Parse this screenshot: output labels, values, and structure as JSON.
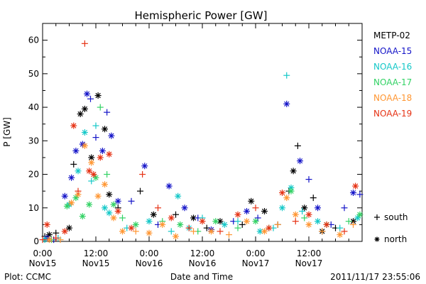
{
  "chart_data": {
    "type": "scatter",
    "title": "Hemispheric Power [GW]",
    "ylabel": "P [GW]",
    "xlabel": "Date and Time",
    "ylim": [
      0,
      65
    ],
    "y_ticks": [
      0,
      10,
      20,
      30,
      40,
      50,
      60
    ],
    "xlim_hours": [
      0,
      72
    ],
    "x_ticks": [
      {
        "t": 0,
        "time": "0:00",
        "date": "Nov15"
      },
      {
        "t": 12,
        "time": "12:00",
        "date": "Nov15"
      },
      {
        "t": 24,
        "time": "0:00",
        "date": "Nov16"
      },
      {
        "t": 36,
        "time": "12:00",
        "date": "Nov16"
      },
      {
        "t": 48,
        "time": "0:00",
        "date": "Nov17"
      },
      {
        "t": 60,
        "time": "12:00",
        "date": "Nov17"
      }
    ],
    "legend_position": "right",
    "marker_legend": [
      {
        "symbol": "+",
        "label": "south"
      },
      {
        "symbol": "*",
        "label": "north"
      }
    ],
    "footer_left": "Plot: CCMC",
    "footer_right": "2011/11/17 23:55:06",
    "series": [
      {
        "name": "METP-02",
        "color": "#000000",
        "points": [
          {
            "t": 0.5,
            "y": 1.5,
            "m": "+"
          },
          {
            "t": 1.5,
            "y": 2,
            "m": "*"
          },
          {
            "t": 3,
            "y": 2.5,
            "m": "+"
          },
          {
            "t": 6,
            "y": 4,
            "m": "*"
          },
          {
            "t": 7,
            "y": 23,
            "m": "+"
          },
          {
            "t": 8.5,
            "y": 38,
            "m": "*"
          },
          {
            "t": 9.5,
            "y": 39.5,
            "m": "*"
          },
          {
            "t": 11,
            "y": 25,
            "m": "*"
          },
          {
            "t": 12.5,
            "y": 43.5,
            "m": "*"
          },
          {
            "t": 14,
            "y": 33.5,
            "m": "*"
          },
          {
            "t": 15,
            "y": 14,
            "m": "*"
          },
          {
            "t": 17,
            "y": 10,
            "m": "+"
          },
          {
            "t": 22,
            "y": 15,
            "m": "+"
          },
          {
            "t": 25,
            "y": 8,
            "m": "*"
          },
          {
            "t": 30,
            "y": 8,
            "m": "+"
          },
          {
            "t": 34,
            "y": 7,
            "m": "*"
          },
          {
            "t": 37,
            "y": 4,
            "m": "+"
          },
          {
            "t": 40,
            "y": 6,
            "m": "*"
          },
          {
            "t": 45,
            "y": 5,
            "m": "+"
          },
          {
            "t": 47,
            "y": 12,
            "m": "*"
          },
          {
            "t": 50,
            "y": 9,
            "m": "*"
          },
          {
            "t": 53,
            "y": 5,
            "m": "+"
          },
          {
            "t": 55.5,
            "y": 15,
            "m": "+"
          },
          {
            "t": 56.5,
            "y": 21,
            "m": "*"
          },
          {
            "t": 57.5,
            "y": 28.5,
            "m": "+"
          },
          {
            "t": 59,
            "y": 10,
            "m": "*"
          },
          {
            "t": 61,
            "y": 13,
            "m": "+"
          },
          {
            "t": 63,
            "y": 3,
            "m": "*"
          },
          {
            "t": 66,
            "y": 4,
            "m": "+"
          },
          {
            "t": 70,
            "y": 6,
            "m": "*"
          }
        ]
      },
      {
        "name": "NOAA-15",
        "color": "#1414c8",
        "points": [
          {
            "t": 1,
            "y": 1,
            "m": "*"
          },
          {
            "t": 2.5,
            "y": 0.5,
            "m": "+"
          },
          {
            "t": 5,
            "y": 13.5,
            "m": "*"
          },
          {
            "t": 6.5,
            "y": 19,
            "m": "*"
          },
          {
            "t": 7.5,
            "y": 27,
            "m": "*"
          },
          {
            "t": 9,
            "y": 29,
            "m": "*"
          },
          {
            "t": 10,
            "y": 44,
            "m": "*"
          },
          {
            "t": 10.8,
            "y": 42.5,
            "m": "+"
          },
          {
            "t": 12,
            "y": 31,
            "m": "+"
          },
          {
            "t": 13.5,
            "y": 27,
            "m": "*"
          },
          {
            "t": 14.5,
            "y": 38.5,
            "m": "+"
          },
          {
            "t": 15.5,
            "y": 31.5,
            "m": "*"
          },
          {
            "t": 17,
            "y": 12,
            "m": "*"
          },
          {
            "t": 20,
            "y": 12,
            "m": "+"
          },
          {
            "t": 23,
            "y": 22.5,
            "m": "*"
          },
          {
            "t": 26,
            "y": 5,
            "m": "+"
          },
          {
            "t": 28.5,
            "y": 16.5,
            "m": "*"
          },
          {
            "t": 32,
            "y": 10,
            "m": "*"
          },
          {
            "t": 35,
            "y": 7,
            "m": "+"
          },
          {
            "t": 38,
            "y": 3.5,
            "m": "*"
          },
          {
            "t": 43,
            "y": 6,
            "m": "+"
          },
          {
            "t": 46,
            "y": 9,
            "m": "*"
          },
          {
            "t": 48.5,
            "y": 7,
            "m": "+"
          },
          {
            "t": 55,
            "y": 41,
            "m": "*"
          },
          {
            "t": 58,
            "y": 24,
            "m": "*"
          },
          {
            "t": 60,
            "y": 18.5,
            "m": "+"
          },
          {
            "t": 62,
            "y": 10,
            "m": "*"
          },
          {
            "t": 65,
            "y": 5,
            "m": "+"
          },
          {
            "t": 68,
            "y": 10,
            "m": "+"
          },
          {
            "t": 70,
            "y": 14.5,
            "m": "*"
          },
          {
            "t": 71.5,
            "y": 14,
            "m": "+"
          }
        ]
      },
      {
        "name": "NOAA-16",
        "color": "#14c8c8",
        "points": [
          {
            "t": 0.5,
            "y": 0.5,
            "m": "*"
          },
          {
            "t": 3.5,
            "y": 1,
            "m": "+"
          },
          {
            "t": 6,
            "y": 11,
            "m": "*"
          },
          {
            "t": 8,
            "y": 21,
            "m": "*"
          },
          {
            "t": 9.5,
            "y": 32.5,
            "m": "*"
          },
          {
            "t": 11,
            "y": 18,
            "m": "+"
          },
          {
            "t": 12,
            "y": 34.5,
            "m": "+"
          },
          {
            "t": 14,
            "y": 10,
            "m": "*"
          },
          {
            "t": 15,
            "y": 8.5,
            "m": "*"
          },
          {
            "t": 19,
            "y": 4,
            "m": "+"
          },
          {
            "t": 24,
            "y": 6,
            "m": "*"
          },
          {
            "t": 29,
            "y": 3,
            "m": "+"
          },
          {
            "t": 30.5,
            "y": 13.5,
            "m": "*"
          },
          {
            "t": 33,
            "y": 4,
            "m": "*"
          },
          {
            "t": 36,
            "y": 7,
            "m": "+"
          },
          {
            "t": 41,
            "y": 5,
            "m": "*"
          },
          {
            "t": 44,
            "y": 6,
            "m": "+"
          },
          {
            "t": 49,
            "y": 3,
            "m": "*"
          },
          {
            "t": 52,
            "y": 4,
            "m": "+"
          },
          {
            "t": 54,
            "y": 10,
            "m": "*"
          },
          {
            "t": 55,
            "y": 49.5,
            "m": "+"
          },
          {
            "t": 56,
            "y": 16,
            "m": "*"
          },
          {
            "t": 58.5,
            "y": 9,
            "m": "+"
          },
          {
            "t": 62,
            "y": 6,
            "m": "*"
          },
          {
            "t": 67,
            "y": 4,
            "m": "+"
          },
          {
            "t": 71,
            "y": 7,
            "m": "*"
          }
        ]
      },
      {
        "name": "NOAA-17",
        "color": "#32d264",
        "points": [
          {
            "t": 2,
            "y": 0.5,
            "m": "+"
          },
          {
            "t": 5.5,
            "y": 10.5,
            "m": "*"
          },
          {
            "t": 7.5,
            "y": 13,
            "m": "*"
          },
          {
            "t": 9,
            "y": 7.5,
            "m": "*"
          },
          {
            "t": 10.5,
            "y": 11,
            "m": "*"
          },
          {
            "t": 12,
            "y": 19,
            "m": "*"
          },
          {
            "t": 13,
            "y": 40,
            "m": "+"
          },
          {
            "t": 14.5,
            "y": 20,
            "m": "+"
          },
          {
            "t": 16,
            "y": 11,
            "m": "*"
          },
          {
            "t": 18,
            "y": 7,
            "m": "+"
          },
          {
            "t": 21,
            "y": 5,
            "m": "*"
          },
          {
            "t": 27,
            "y": 6,
            "m": "+"
          },
          {
            "t": 31,
            "y": 5,
            "m": "*"
          },
          {
            "t": 35,
            "y": 3,
            "m": "+"
          },
          {
            "t": 39,
            "y": 6,
            "m": "*"
          },
          {
            "t": 44,
            "y": 4,
            "m": "+"
          },
          {
            "t": 48,
            "y": 6,
            "m": "*"
          },
          {
            "t": 51,
            "y": 4,
            "m": "+"
          },
          {
            "t": 56,
            "y": 15,
            "m": "*"
          },
          {
            "t": 59,
            "y": 7,
            "m": "+"
          },
          {
            "t": 64,
            "y": 5,
            "m": "*"
          },
          {
            "t": 69,
            "y": 6,
            "m": "+"
          },
          {
            "t": 71.5,
            "y": 8,
            "m": "*"
          }
        ]
      },
      {
        "name": "NOAA-18",
        "color": "#ff9632",
        "points": [
          {
            "t": 1.5,
            "y": 0.5,
            "m": "*"
          },
          {
            "t": 4,
            "y": 0.5,
            "m": "+"
          },
          {
            "t": 6.5,
            "y": 11.5,
            "m": "*"
          },
          {
            "t": 8,
            "y": 14,
            "m": "*"
          },
          {
            "t": 9.5,
            "y": 28.5,
            "m": "*"
          },
          {
            "t": 11,
            "y": 23.5,
            "m": "*"
          },
          {
            "t": 12.5,
            "y": 13.5,
            "m": "*"
          },
          {
            "t": 14,
            "y": 17,
            "m": "*"
          },
          {
            "t": 16,
            "y": 7,
            "m": "*"
          },
          {
            "t": 18,
            "y": 3,
            "m": "*"
          },
          {
            "t": 21,
            "y": 3,
            "m": "+"
          },
          {
            "t": 24,
            "y": 2.5,
            "m": "*"
          },
          {
            "t": 27,
            "y": 5,
            "m": "*"
          },
          {
            "t": 30,
            "y": 1.5,
            "m": "*"
          },
          {
            "t": 34,
            "y": 3,
            "m": "+"
          },
          {
            "t": 38,
            "y": 3,
            "m": "*"
          },
          {
            "t": 42,
            "y": 2,
            "m": "+"
          },
          {
            "t": 46,
            "y": 6,
            "m": "*"
          },
          {
            "t": 50,
            "y": 3,
            "m": "*"
          },
          {
            "t": 53,
            "y": 5,
            "m": "+"
          },
          {
            "t": 55,
            "y": 13,
            "m": "*"
          },
          {
            "t": 57,
            "y": 8,
            "m": "*"
          },
          {
            "t": 60,
            "y": 5,
            "m": "*"
          },
          {
            "t": 63,
            "y": 3,
            "m": "+"
          },
          {
            "t": 67,
            "y": 2,
            "m": "*"
          },
          {
            "t": 70,
            "y": 5,
            "m": "+"
          }
        ]
      },
      {
        "name": "NOAA-19",
        "color": "#e63214",
        "points": [
          {
            "t": 0,
            "y": 0.5,
            "m": "+"
          },
          {
            "t": 1,
            "y": 5,
            "m": "*"
          },
          {
            "t": 3,
            "y": 1,
            "m": "+"
          },
          {
            "t": 5,
            "y": 3,
            "m": "*"
          },
          {
            "t": 7,
            "y": 34.5,
            "m": "*"
          },
          {
            "t": 8,
            "y": 15,
            "m": "+"
          },
          {
            "t": 9.5,
            "y": 59,
            "m": "+"
          },
          {
            "t": 10.5,
            "y": 21,
            "m": "*"
          },
          {
            "t": 11.5,
            "y": 20,
            "m": "*"
          },
          {
            "t": 13,
            "y": 25,
            "m": "*"
          },
          {
            "t": 15,
            "y": 26,
            "m": "*"
          },
          {
            "t": 17,
            "y": 9,
            "m": "*"
          },
          {
            "t": 20,
            "y": 4,
            "m": "*"
          },
          {
            "t": 22.5,
            "y": 20,
            "m": "+"
          },
          {
            "t": 26,
            "y": 10,
            "m": "+"
          },
          {
            "t": 29,
            "y": 7,
            "m": "*"
          },
          {
            "t": 33,
            "y": 4,
            "m": "+"
          },
          {
            "t": 36,
            "y": 6,
            "m": "*"
          },
          {
            "t": 40,
            "y": 3,
            "m": "+"
          },
          {
            "t": 44,
            "y": 8,
            "m": "*"
          },
          {
            "t": 48,
            "y": 10,
            "m": "+"
          },
          {
            "t": 51,
            "y": 4,
            "m": "*"
          },
          {
            "t": 54,
            "y": 14.5,
            "m": "*"
          },
          {
            "t": 57,
            "y": 6,
            "m": "+"
          },
          {
            "t": 60,
            "y": 8,
            "m": "*"
          },
          {
            "t": 64,
            "y": 5,
            "m": "*"
          },
          {
            "t": 68,
            "y": 3,
            "m": "+"
          },
          {
            "t": 70.5,
            "y": 16.5,
            "m": "*"
          }
        ]
      }
    ]
  }
}
